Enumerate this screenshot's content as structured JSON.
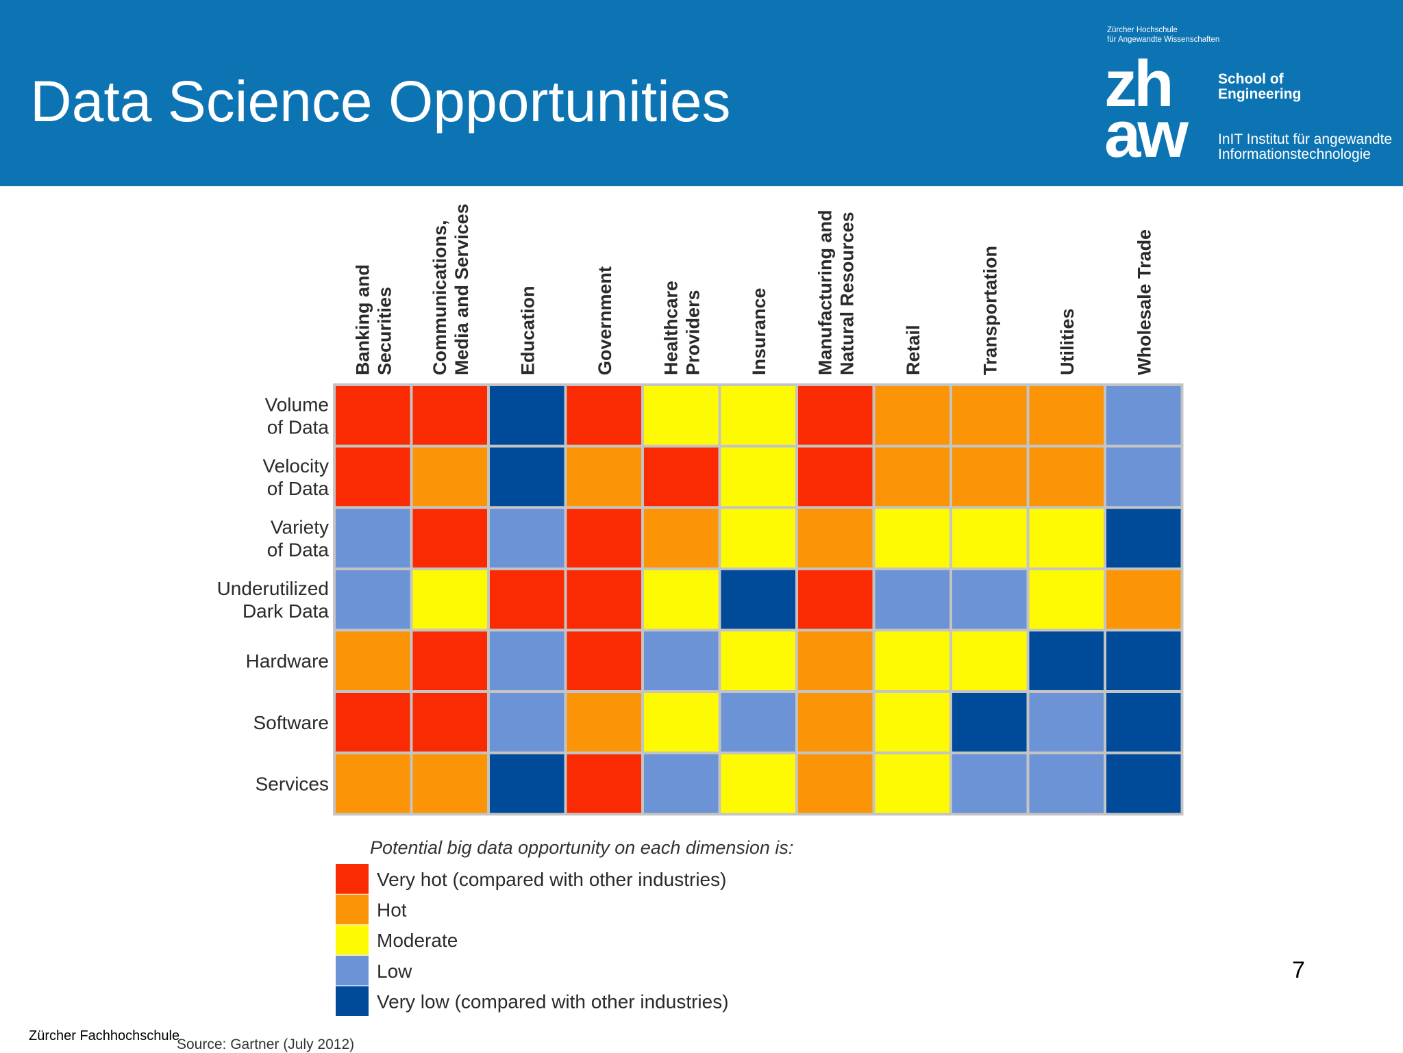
{
  "slide": {
    "title": "Data Science Opportunities",
    "page_number": "7",
    "footer_org": "Zürcher Fachhochschule",
    "source": "Source: Gartner (July 2012)"
  },
  "logo": {
    "small_line1": "Zürcher Hochschule",
    "small_line2": "für Angewandte Wissenschaften",
    "mark_line1": "zh",
    "mark_line2": "aw",
    "school_line1": "School of",
    "school_line2": "Engineering",
    "inst_line1": "InIT Institut für angewandte",
    "inst_line2": "Informationstechnologie"
  },
  "colors": {
    "header_blue": "#0d74b4",
    "very_hot": "#fa2a02",
    "hot": "#fb9407",
    "moderate": "#fefa04",
    "low": "#6b93d6",
    "very_low": "#004a9a"
  },
  "chart_data": {
    "type": "heatmap",
    "columns": [
      [
        "Banking and",
        "Securities"
      ],
      [
        "Communications,",
        "Media and Services"
      ],
      [
        "Education"
      ],
      [
        "Government"
      ],
      [
        "Healthcare",
        "Providers"
      ],
      [
        "Insurance"
      ],
      [
        "Manufacturing and",
        "Natural Resources"
      ],
      [
        "Retail"
      ],
      [
        "Transportation"
      ],
      [
        "Utilities"
      ],
      [
        "Wholesale Trade"
      ]
    ],
    "rows": [
      [
        "Volume",
        "of Data"
      ],
      [
        "Velocity",
        "of Data"
      ],
      [
        "Variety",
        "of Data"
      ],
      [
        "Underutilized",
        "Dark Data"
      ],
      [
        "Hardware"
      ],
      [
        "Software"
      ],
      [
        "Services"
      ]
    ],
    "levels": [
      "very_hot",
      "hot",
      "moderate",
      "low",
      "very_low"
    ],
    "values": [
      [
        "very_hot",
        "very_hot",
        "very_low",
        "very_hot",
        "moderate",
        "moderate",
        "very_hot",
        "hot",
        "hot",
        "hot",
        "low"
      ],
      [
        "very_hot",
        "hot",
        "very_low",
        "hot",
        "very_hot",
        "moderate",
        "very_hot",
        "hot",
        "hot",
        "hot",
        "low"
      ],
      [
        "low",
        "very_hot",
        "low",
        "very_hot",
        "hot",
        "moderate",
        "hot",
        "moderate",
        "moderate",
        "moderate",
        "very_low"
      ],
      [
        "low",
        "moderate",
        "very_hot",
        "very_hot",
        "moderate",
        "very_low",
        "very_hot",
        "low",
        "low",
        "moderate",
        "hot"
      ],
      [
        "hot",
        "very_hot",
        "low",
        "very_hot",
        "low",
        "moderate",
        "hot",
        "moderate",
        "moderate",
        "very_low",
        "very_low"
      ],
      [
        "very_hot",
        "very_hot",
        "low",
        "hot",
        "moderate",
        "low",
        "hot",
        "moderate",
        "very_low",
        "low",
        "very_low"
      ],
      [
        "hot",
        "hot",
        "very_low",
        "very_hot",
        "low",
        "moderate",
        "hot",
        "moderate",
        "low",
        "low",
        "very_low"
      ]
    ],
    "legend_title": "Potential big data opportunity on each dimension is:",
    "legend": [
      {
        "level": "very_hot",
        "label": "Very hot (compared with other industries)"
      },
      {
        "level": "hot",
        "label": "Hot"
      },
      {
        "level": "moderate",
        "label": "Moderate"
      },
      {
        "level": "low",
        "label": "Low"
      },
      {
        "level": "very_low",
        "label": "Very low (compared with other industries)"
      }
    ],
    "legend_placement": "bottom-left",
    "grid": true
  }
}
